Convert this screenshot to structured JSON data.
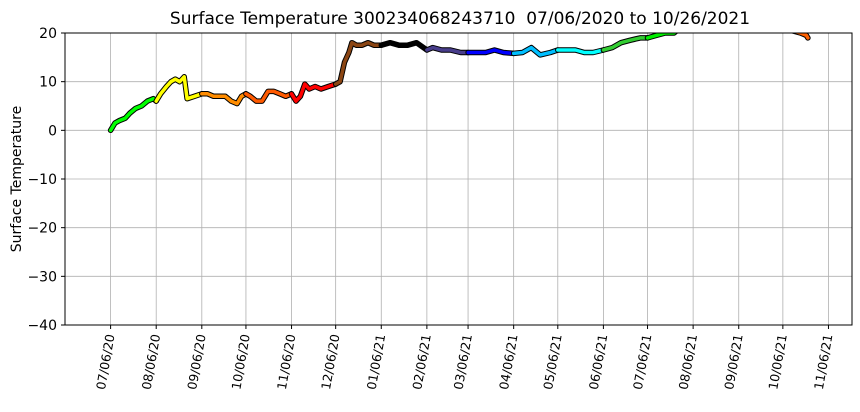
{
  "chart_data": {
    "type": "line",
    "title": "Surface Temperature 300234068243710  07/06/2020 to 10/26/2021",
    "y_label": "Surface Temperature",
    "xlim": [
      "06/05/20",
      "11/22/21"
    ],
    "xticks": [
      "07/06/20",
      "08/06/20",
      "09/06/20",
      "10/06/20",
      "11/06/20",
      "12/06/20",
      "01/06/21",
      "02/06/21",
      "03/06/21",
      "04/06/21",
      "05/06/21",
      "06/06/21",
      "07/06/21",
      "08/06/21",
      "09/06/21",
      "10/06/21",
      "11/06/21"
    ],
    "ylim": [
      -40,
      20
    ],
    "yticks": [
      {
        "value": -40,
        "label": "−40"
      },
      {
        "value": -30,
        "label": "−30"
      },
      {
        "value": -20,
        "label": "−20"
      },
      {
        "value": -10,
        "label": "−10"
      },
      0,
      10,
      20
    ],
    "grid": true,
    "series": [
      {
        "color": "#00ff00",
        "x": [
          "07/06/20",
          "07/09/20",
          "07/12/20",
          "07/16/20",
          "07/19/20",
          "07/23/20",
          "07/27/20",
          "07/31/20",
          "08/04/20",
          "08/06/20"
        ],
        "values": [
          0,
          1.5,
          2,
          2.5,
          3.5,
          4.5,
          5,
          6,
          6.5,
          6
        ]
      },
      {
        "color": "#ffff00",
        "x": [
          "08/06/20",
          "08/09/20",
          "08/13/20",
          "08/16/20",
          "08/19/20",
          "08/22/20",
          "08/25/20",
          "08/27/20",
          "09/01/20",
          "09/06/20"
        ],
        "values": [
          6,
          7.5,
          9,
          10,
          10.5,
          10,
          11,
          6.5,
          7,
          7.5
        ]
      },
      {
        "color": "#ff8c00",
        "x": [
          "09/06/20",
          "09/10/20",
          "09/14/20",
          "09/18/20",
          "09/22/20",
          "09/26/20",
          "09/30/20",
          "10/03/20",
          "10/06/20"
        ],
        "values": [
          7.5,
          7.5,
          7,
          7,
          7,
          6,
          5.5,
          7,
          7.5
        ]
      },
      {
        "color": "#ff5a00",
        "x": [
          "10/06/20",
          "10/09/20",
          "10/13/20",
          "10/17/20",
          "10/21/20",
          "10/25/20",
          "10/29/20",
          "11/02/20",
          "11/06/20"
        ],
        "values": [
          7.5,
          7,
          6,
          6,
          8,
          8,
          7.5,
          7,
          7.5
        ]
      },
      {
        "color": "#ff0000",
        "x": [
          "11/06/20",
          "11/09/20",
          "11/12/20",
          "11/15/20",
          "11/18/20",
          "11/22/20",
          "11/26/20",
          "12/01/20",
          "12/06/20"
        ],
        "values": [
          7.5,
          6,
          7,
          9.5,
          8.5,
          9,
          8.5,
          9,
          9.5
        ]
      },
      {
        "color": "#8b4513",
        "x": [
          "12/06/20",
          "12/09/20",
          "12/12/20",
          "12/15/20",
          "12/17/20",
          "12/20/20",
          "12/24/20",
          "12/28/20",
          "01/01/21",
          "01/06/21"
        ],
        "values": [
          9.5,
          10,
          14,
          16,
          18,
          17.5,
          17.5,
          18,
          17.5,
          17.5
        ]
      },
      {
        "color": "#000000",
        "x": [
          "01/06/21",
          "01/12/21",
          "01/18/21",
          "01/24/21",
          "01/30/21",
          "02/06/21"
        ],
        "values": [
          17.5,
          18,
          17.5,
          17.5,
          18,
          16.5
        ]
      },
      {
        "color": "#483d8b",
        "x": [
          "02/06/21",
          "02/10/21",
          "02/16/21",
          "02/22/21",
          "03/01/21",
          "03/06/21"
        ],
        "values": [
          16.5,
          17,
          16.5,
          16.5,
          16,
          16
        ]
      },
      {
        "color": "#0000ff",
        "x": [
          "03/06/21",
          "03/12/21",
          "03/18/21",
          "03/24/21",
          "03/30/21",
          "04/06/21"
        ],
        "values": [
          16,
          16,
          16,
          16.5,
          16,
          15.8
        ]
      },
      {
        "color": "#00bfff",
        "x": [
          "04/06/21",
          "04/12/21",
          "04/18/21",
          "04/24/21",
          "05/01/21",
          "05/06/21"
        ],
        "values": [
          15.8,
          16,
          17,
          15.5,
          16,
          16.5
        ]
      },
      {
        "color": "#00ffff",
        "x": [
          "05/06/21",
          "05/12/21",
          "05/18/21",
          "05/24/21",
          "05/30/21",
          "06/06/21"
        ],
        "values": [
          16.5,
          16.5,
          16.5,
          16,
          16,
          16.5
        ]
      },
      {
        "color": "#32cd32",
        "x": [
          "06/06/21",
          "06/12/21",
          "06/18/21",
          "06/24/21",
          "07/01/21",
          "07/06/21"
        ],
        "values": [
          16.5,
          17,
          18,
          18.5,
          19,
          19
        ]
      },
      {
        "color": "#00ee00",
        "x": [
          "07/06/21",
          "07/12/21",
          "07/18/21",
          "07/24/21",
          "07/26/21"
        ],
        "values": [
          19,
          19.5,
          20,
          20,
          20.5
        ]
      },
      {
        "color": "#ff6000",
        "x": [
          "10/12/21",
          "10/18/21",
          "10/22/21",
          "10/23/21"
        ],
        "values": [
          20.5,
          20,
          19.5,
          19
        ]
      }
    ]
  }
}
